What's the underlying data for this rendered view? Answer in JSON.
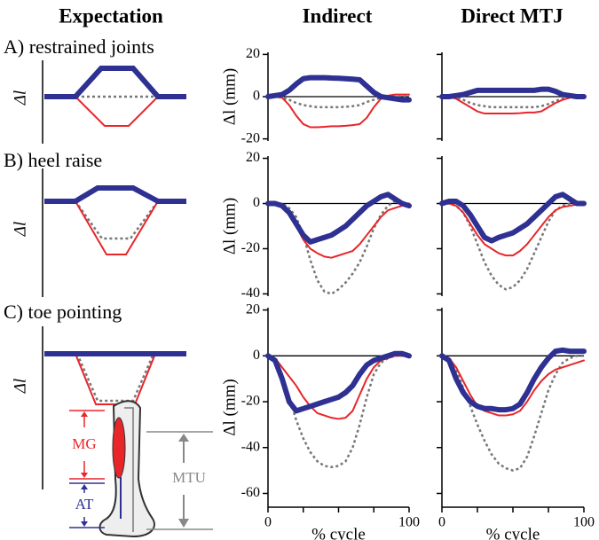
{
  "figure": {
    "columns": [
      "Expectation",
      "Indirect",
      "Direct MTJ"
    ],
    "rows": [
      "A) restrained joints",
      "B) heel raise",
      "C) toe pointing"
    ],
    "schematic_ylabel": "Δl",
    "leg_labels": {
      "mg": "MG",
      "at": "AT",
      "mtu": "MTU"
    }
  },
  "chart_data": [
    {
      "type": "line",
      "ylabel": "Δl (mm)",
      "x": [
        0,
        5,
        10,
        15,
        20,
        25,
        30,
        35,
        40,
        45,
        50,
        55,
        60,
        65,
        70,
        75,
        80,
        85,
        90,
        95,
        100
      ],
      "xlim": [
        0,
        100
      ],
      "ylim": [
        -21,
        21
      ],
      "yticks": [
        -20,
        0,
        20
      ],
      "ytick_labels": true,
      "zero_line": true,
      "series": [
        {
          "color": "#2e3192",
          "values": [
            0,
            0.5,
            1,
            3,
            6,
            8.5,
            9,
            9,
            9,
            8.8,
            8.7,
            8.5,
            8.3,
            8,
            5,
            2,
            0,
            -0.5,
            -1,
            -1.5,
            -1.5
          ]
        },
        {
          "color": "#e8262a",
          "values": [
            0,
            0,
            -0.5,
            -4,
            -9,
            -13,
            -14.5,
            -14.5,
            -14.3,
            -14,
            -14,
            -13.8,
            -13.5,
            -13,
            -10,
            -5,
            -1,
            0.5,
            1,
            1,
            1
          ]
        },
        {
          "color": "#777777",
          "values": [
            0,
            0,
            -0.5,
            -1.5,
            -3,
            -4,
            -4.5,
            -5,
            -5,
            -5,
            -5,
            -4.8,
            -4.5,
            -4,
            -2.5,
            -1.5,
            -0.5,
            0,
            0,
            0,
            0
          ]
        }
      ]
    },
    {
      "type": "line",
      "x": [
        0,
        5,
        10,
        15,
        20,
        25,
        30,
        35,
        40,
        45,
        50,
        55,
        60,
        65,
        70,
        75,
        80,
        85,
        90,
        95,
        100
      ],
      "xlim": [
        0,
        100
      ],
      "ylim": [
        -21,
        21
      ],
      "yticks": [
        -20,
        0,
        20
      ],
      "ytick_labels": false,
      "zero_line": true,
      "series": [
        {
          "color": "#2e3192",
          "values": [
            0,
            0,
            0.5,
            1,
            2,
            3,
            3,
            3,
            3,
            3,
            3,
            3,
            3,
            3,
            3.5,
            3.5,
            2.5,
            1,
            0.5,
            0,
            0
          ]
        },
        {
          "color": "#e8262a",
          "values": [
            0,
            0,
            -1,
            -3,
            -5,
            -7,
            -8,
            -8,
            -8,
            -8,
            -8,
            -7.8,
            -7.5,
            -7.5,
            -7,
            -5,
            -3,
            -1.5,
            -0.5,
            0,
            0
          ]
        },
        {
          "color": "#777777",
          "values": [
            0,
            0,
            -0.5,
            -1.5,
            -3,
            -4,
            -4.5,
            -5,
            -5,
            -5,
            -5,
            -5,
            -5,
            -5,
            -4.5,
            -3.5,
            -2,
            -1,
            -0.5,
            0,
            0
          ]
        }
      ]
    },
    {
      "type": "line",
      "ylabel": "Δl (mm)",
      "x": [
        0,
        5,
        10,
        15,
        20,
        25,
        30,
        35,
        40,
        45,
        50,
        55,
        60,
        65,
        70,
        75,
        80,
        85,
        90,
        95,
        100
      ],
      "xlim": [
        0,
        100
      ],
      "ylim": [
        -41,
        21
      ],
      "yticks": [
        -40,
        -20,
        0,
        20
      ],
      "ytick_labels": true,
      "zero_line": true,
      "series": [
        {
          "color": "#2e3192",
          "values": [
            0,
            0,
            -1,
            -4,
            -9,
            -14,
            -17,
            -16,
            -15,
            -14,
            -12,
            -10,
            -7,
            -4,
            -1,
            1,
            3,
            4,
            2,
            0,
            -1
          ]
        },
        {
          "color": "#e8262a",
          "values": [
            0,
            0,
            -1,
            -4,
            -10,
            -16,
            -20,
            -22,
            -23.5,
            -24,
            -23,
            -22,
            -21,
            -18,
            -14,
            -10,
            -6,
            -3,
            -2,
            -1,
            0
          ]
        },
        {
          "color": "#777777",
          "values": [
            0,
            0,
            0,
            -2,
            -6,
            -14,
            -25,
            -34,
            -39,
            -40,
            -38,
            -35,
            -31,
            -26,
            -19,
            -11,
            -5,
            -1,
            1,
            0,
            0
          ]
        }
      ]
    },
    {
      "type": "line",
      "x": [
        0,
        5,
        10,
        15,
        20,
        25,
        30,
        35,
        40,
        45,
        50,
        55,
        60,
        65,
        70,
        75,
        80,
        85,
        90,
        95,
        100
      ],
      "xlim": [
        0,
        100
      ],
      "ylim": [
        -41,
        21
      ],
      "yticks": [
        -40,
        -20,
        0,
        20
      ],
      "ytick_labels": false,
      "zero_line": true,
      "series": [
        {
          "color": "#2e3192",
          "values": [
            0,
            1,
            1,
            -1,
            -5,
            -10,
            -15,
            -16.5,
            -15,
            -14,
            -13,
            -11,
            -9,
            -6,
            -3,
            0,
            3,
            4,
            2,
            0,
            0
          ]
        },
        {
          "color": "#e8262a",
          "values": [
            0,
            0,
            -1,
            -4,
            -9,
            -14,
            -18,
            -20,
            -22,
            -23,
            -23,
            -21,
            -18,
            -14,
            -10,
            -6,
            -3,
            -1.5,
            -1,
            -0.5,
            0
          ]
        },
        {
          "color": "#777777",
          "values": [
            0,
            0,
            -1,
            -4,
            -10,
            -18,
            -26,
            -32,
            -36,
            -38,
            -37,
            -34,
            -29,
            -22,
            -15,
            -8,
            -3,
            -1,
            0,
            0,
            0
          ]
        }
      ]
    },
    {
      "type": "line",
      "ylabel": "Δl (mm)",
      "xlabel": "% cycle",
      "x": [
        0,
        5,
        10,
        15,
        20,
        25,
        30,
        35,
        40,
        45,
        50,
        55,
        60,
        65,
        70,
        75,
        80,
        85,
        90,
        95,
        100
      ],
      "xlim": [
        0,
        100
      ],
      "xticks": [
        0,
        100
      ],
      "xminor": [
        25,
        50,
        75
      ],
      "ylim": [
        -66,
        21
      ],
      "yticks": [
        -60,
        -40,
        -20,
        0,
        20
      ],
      "ytick_labels": true,
      "zero_line": true,
      "series": [
        {
          "color": "#2e3192",
          "values": [
            0,
            -2,
            -10,
            -20,
            -24,
            -23,
            -22,
            -21,
            -20,
            -19,
            -18,
            -16,
            -13,
            -8,
            -4,
            -2,
            -1,
            0,
            1,
            1,
            0
          ]
        },
        {
          "color": "#e8262a",
          "values": [
            0,
            -1,
            -5,
            -9,
            -13,
            -18,
            -22,
            -25,
            -26,
            -27,
            -27.5,
            -27,
            -24,
            -17,
            -10,
            -5,
            -2,
            -1,
            0,
            0,
            0
          ]
        },
        {
          "color": "#777777",
          "values": [
            0,
            -2,
            -8,
            -18,
            -28,
            -36,
            -42,
            -46,
            -48,
            -48.5,
            -48,
            -46,
            -40,
            -30,
            -18,
            -8,
            -3,
            -1,
            0,
            0,
            0
          ]
        }
      ]
    },
    {
      "type": "line",
      "xlabel": "% cycle",
      "x": [
        0,
        5,
        10,
        15,
        20,
        25,
        30,
        35,
        40,
        45,
        50,
        55,
        60,
        65,
        70,
        75,
        80,
        85,
        90,
        95,
        100
      ],
      "xlim": [
        0,
        100
      ],
      "xticks": [
        0,
        100
      ],
      "xminor": [
        25,
        50,
        75
      ],
      "ylim": [
        -66,
        21
      ],
      "yticks": [
        -60,
        -40,
        -20,
        0,
        20
      ],
      "ytick_labels": false,
      "zero_line": true,
      "series": [
        {
          "color": "#2e3192",
          "values": [
            0,
            -2,
            -10,
            -16,
            -20,
            -22,
            -23,
            -23,
            -23.5,
            -23.5,
            -23,
            -21,
            -16,
            -10,
            -5,
            -1,
            2,
            2.5,
            2,
            2,
            2
          ]
        },
        {
          "color": "#e8262a",
          "values": [
            0,
            -1,
            -5,
            -11,
            -17,
            -22,
            -24,
            -25,
            -26,
            -26,
            -25.5,
            -24,
            -20,
            -15,
            -11,
            -8,
            -6,
            -5,
            -4,
            -3,
            -2
          ]
        },
        {
          "color": "#777777",
          "values": [
            0,
            -1,
            -6,
            -14,
            -22,
            -30,
            -37,
            -43,
            -47,
            -49,
            -50,
            -49,
            -44,
            -35,
            -25,
            -15,
            -8,
            -3,
            -1,
            0,
            0
          ]
        }
      ]
    }
  ]
}
